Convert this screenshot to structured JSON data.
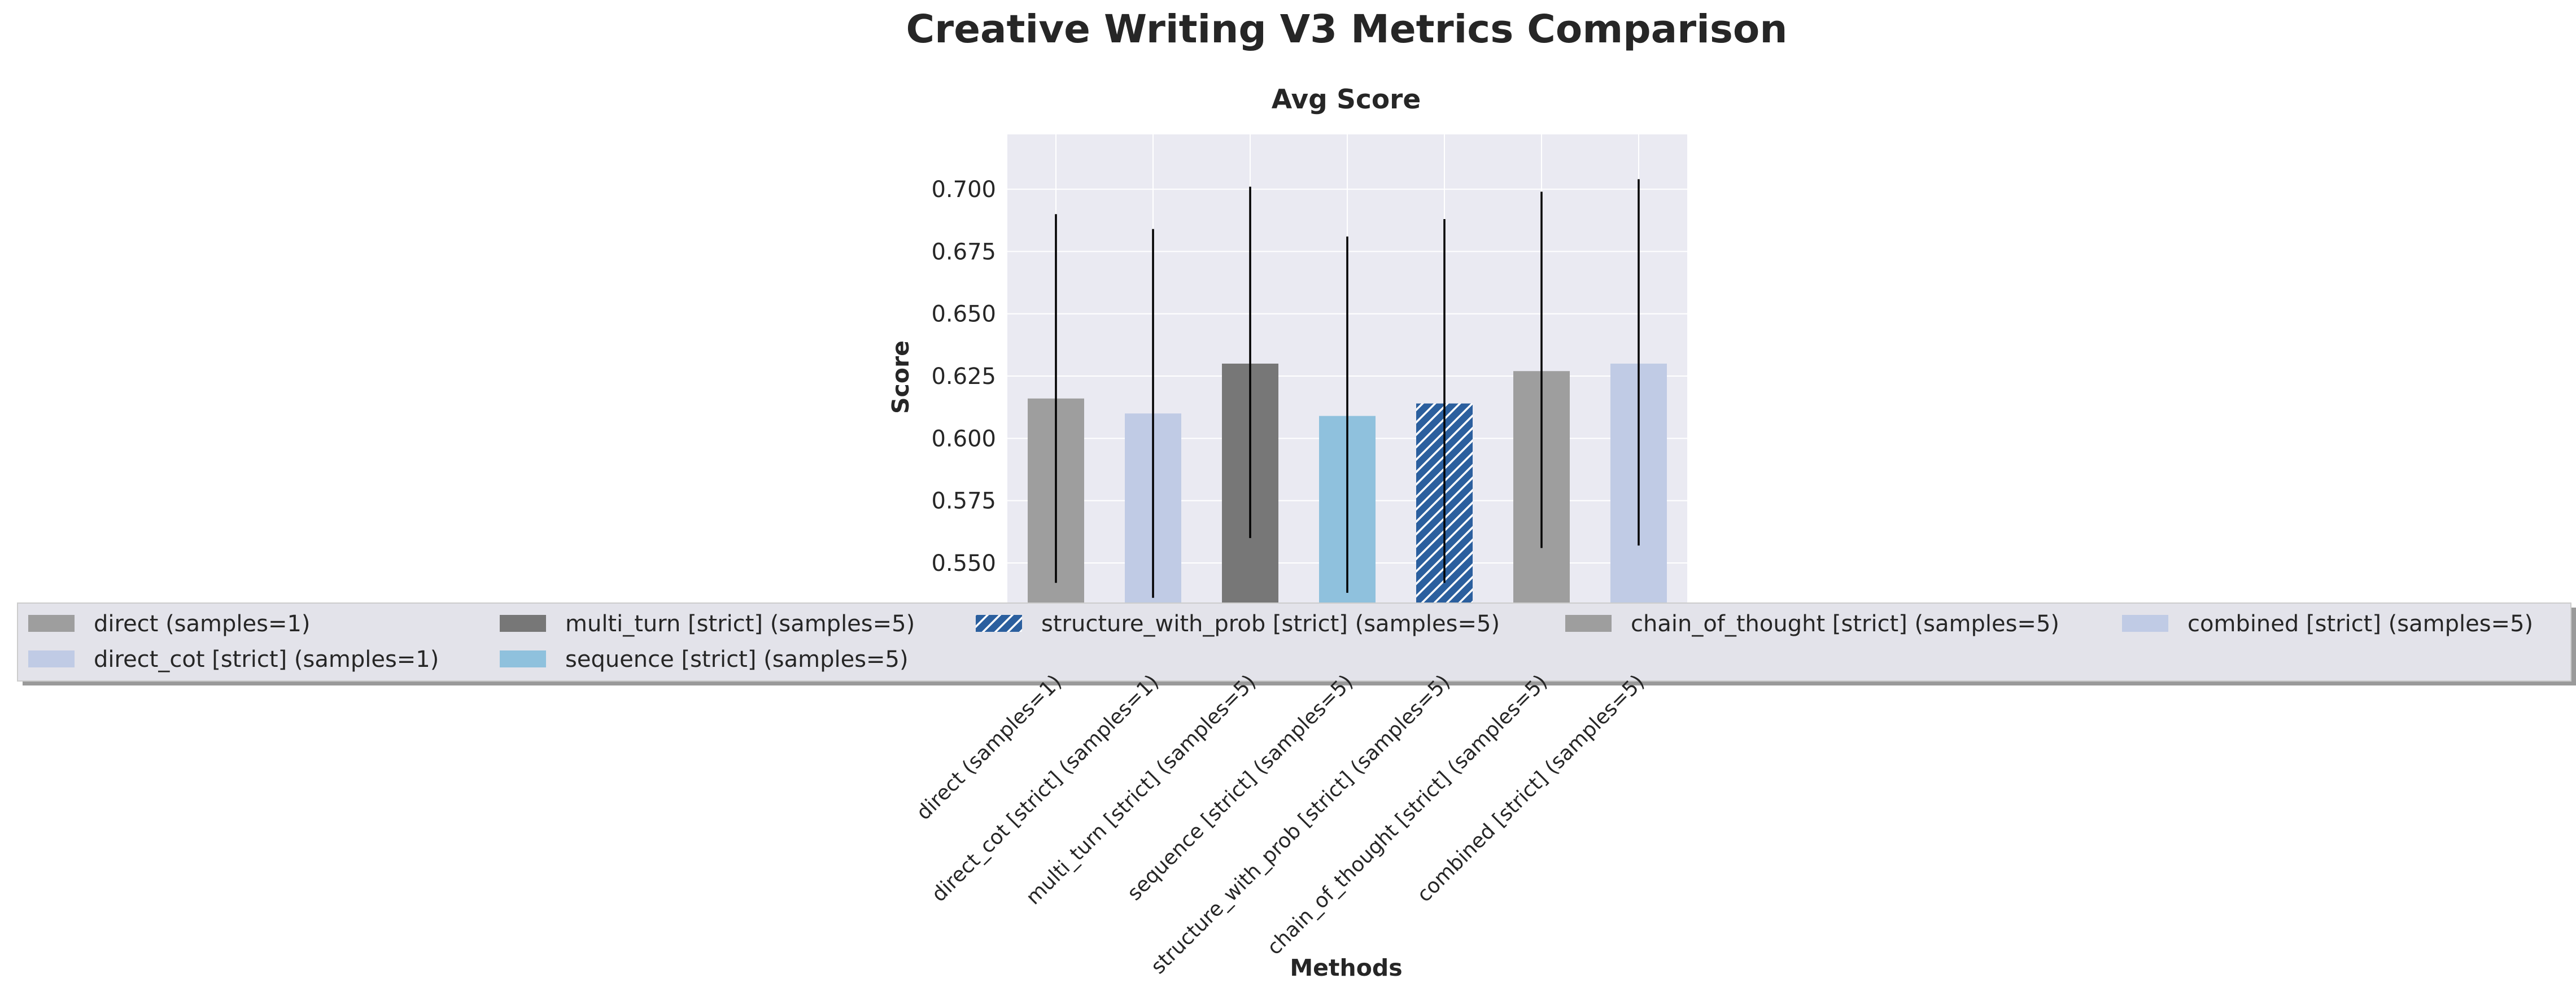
{
  "figure_title": "Creative Writing V3 Metrics Comparison",
  "colors": {
    "background": "#ffffff",
    "plot_background": "#eaeaf2",
    "grid": "#ffffff",
    "text": "#262626",
    "error_bar": "#000000",
    "legend_background": "#e3e3ea",
    "legend_border": "#cccccc",
    "legend_shadow": "#9a9a9a"
  },
  "chart_data": {
    "type": "bar",
    "title": "Avg Score",
    "xlabel": "Methods",
    "ylabel": "Score",
    "ylim": [
      0.533,
      0.722
    ],
    "yticks": [
      0.55,
      0.575,
      0.6,
      0.625,
      0.65,
      0.675,
      0.7
    ],
    "ytick_labels": [
      "0.550",
      "0.575",
      "0.600",
      "0.625",
      "0.650",
      "0.675",
      "0.700"
    ],
    "grid": true,
    "legend_placement": "bottom",
    "categories": [
      "direct (samples=1)",
      "direct_cot [strict] (samples=1)",
      "multi_turn [strict] (samples=5)",
      "sequence [strict] (samples=5)",
      "structure_with_prob [strict] (samples=5)",
      "chain_of_thought [strict] (samples=5)",
      "combined [strict] (samples=5)"
    ],
    "values": [
      0.616,
      0.61,
      0.63,
      0.609,
      0.614,
      0.627,
      0.63
    ],
    "error_low": [
      0.542,
      0.536,
      0.56,
      0.538,
      0.542,
      0.556,
      0.557
    ],
    "error_high": [
      0.69,
      0.684,
      0.701,
      0.681,
      0.688,
      0.699,
      0.704
    ],
    "colors": [
      "#9e9e9e",
      "#c0cbe5",
      "#777777",
      "#8fc1dd",
      "#2b5f9e",
      "#9e9e9e",
      "#c0cbe5"
    ],
    "hatched": [
      false,
      false,
      false,
      false,
      true,
      false,
      false
    ],
    "legend_rows": [
      [
        0,
        2,
        4,
        5,
        6
      ],
      [
        1,
        3
      ]
    ]
  }
}
